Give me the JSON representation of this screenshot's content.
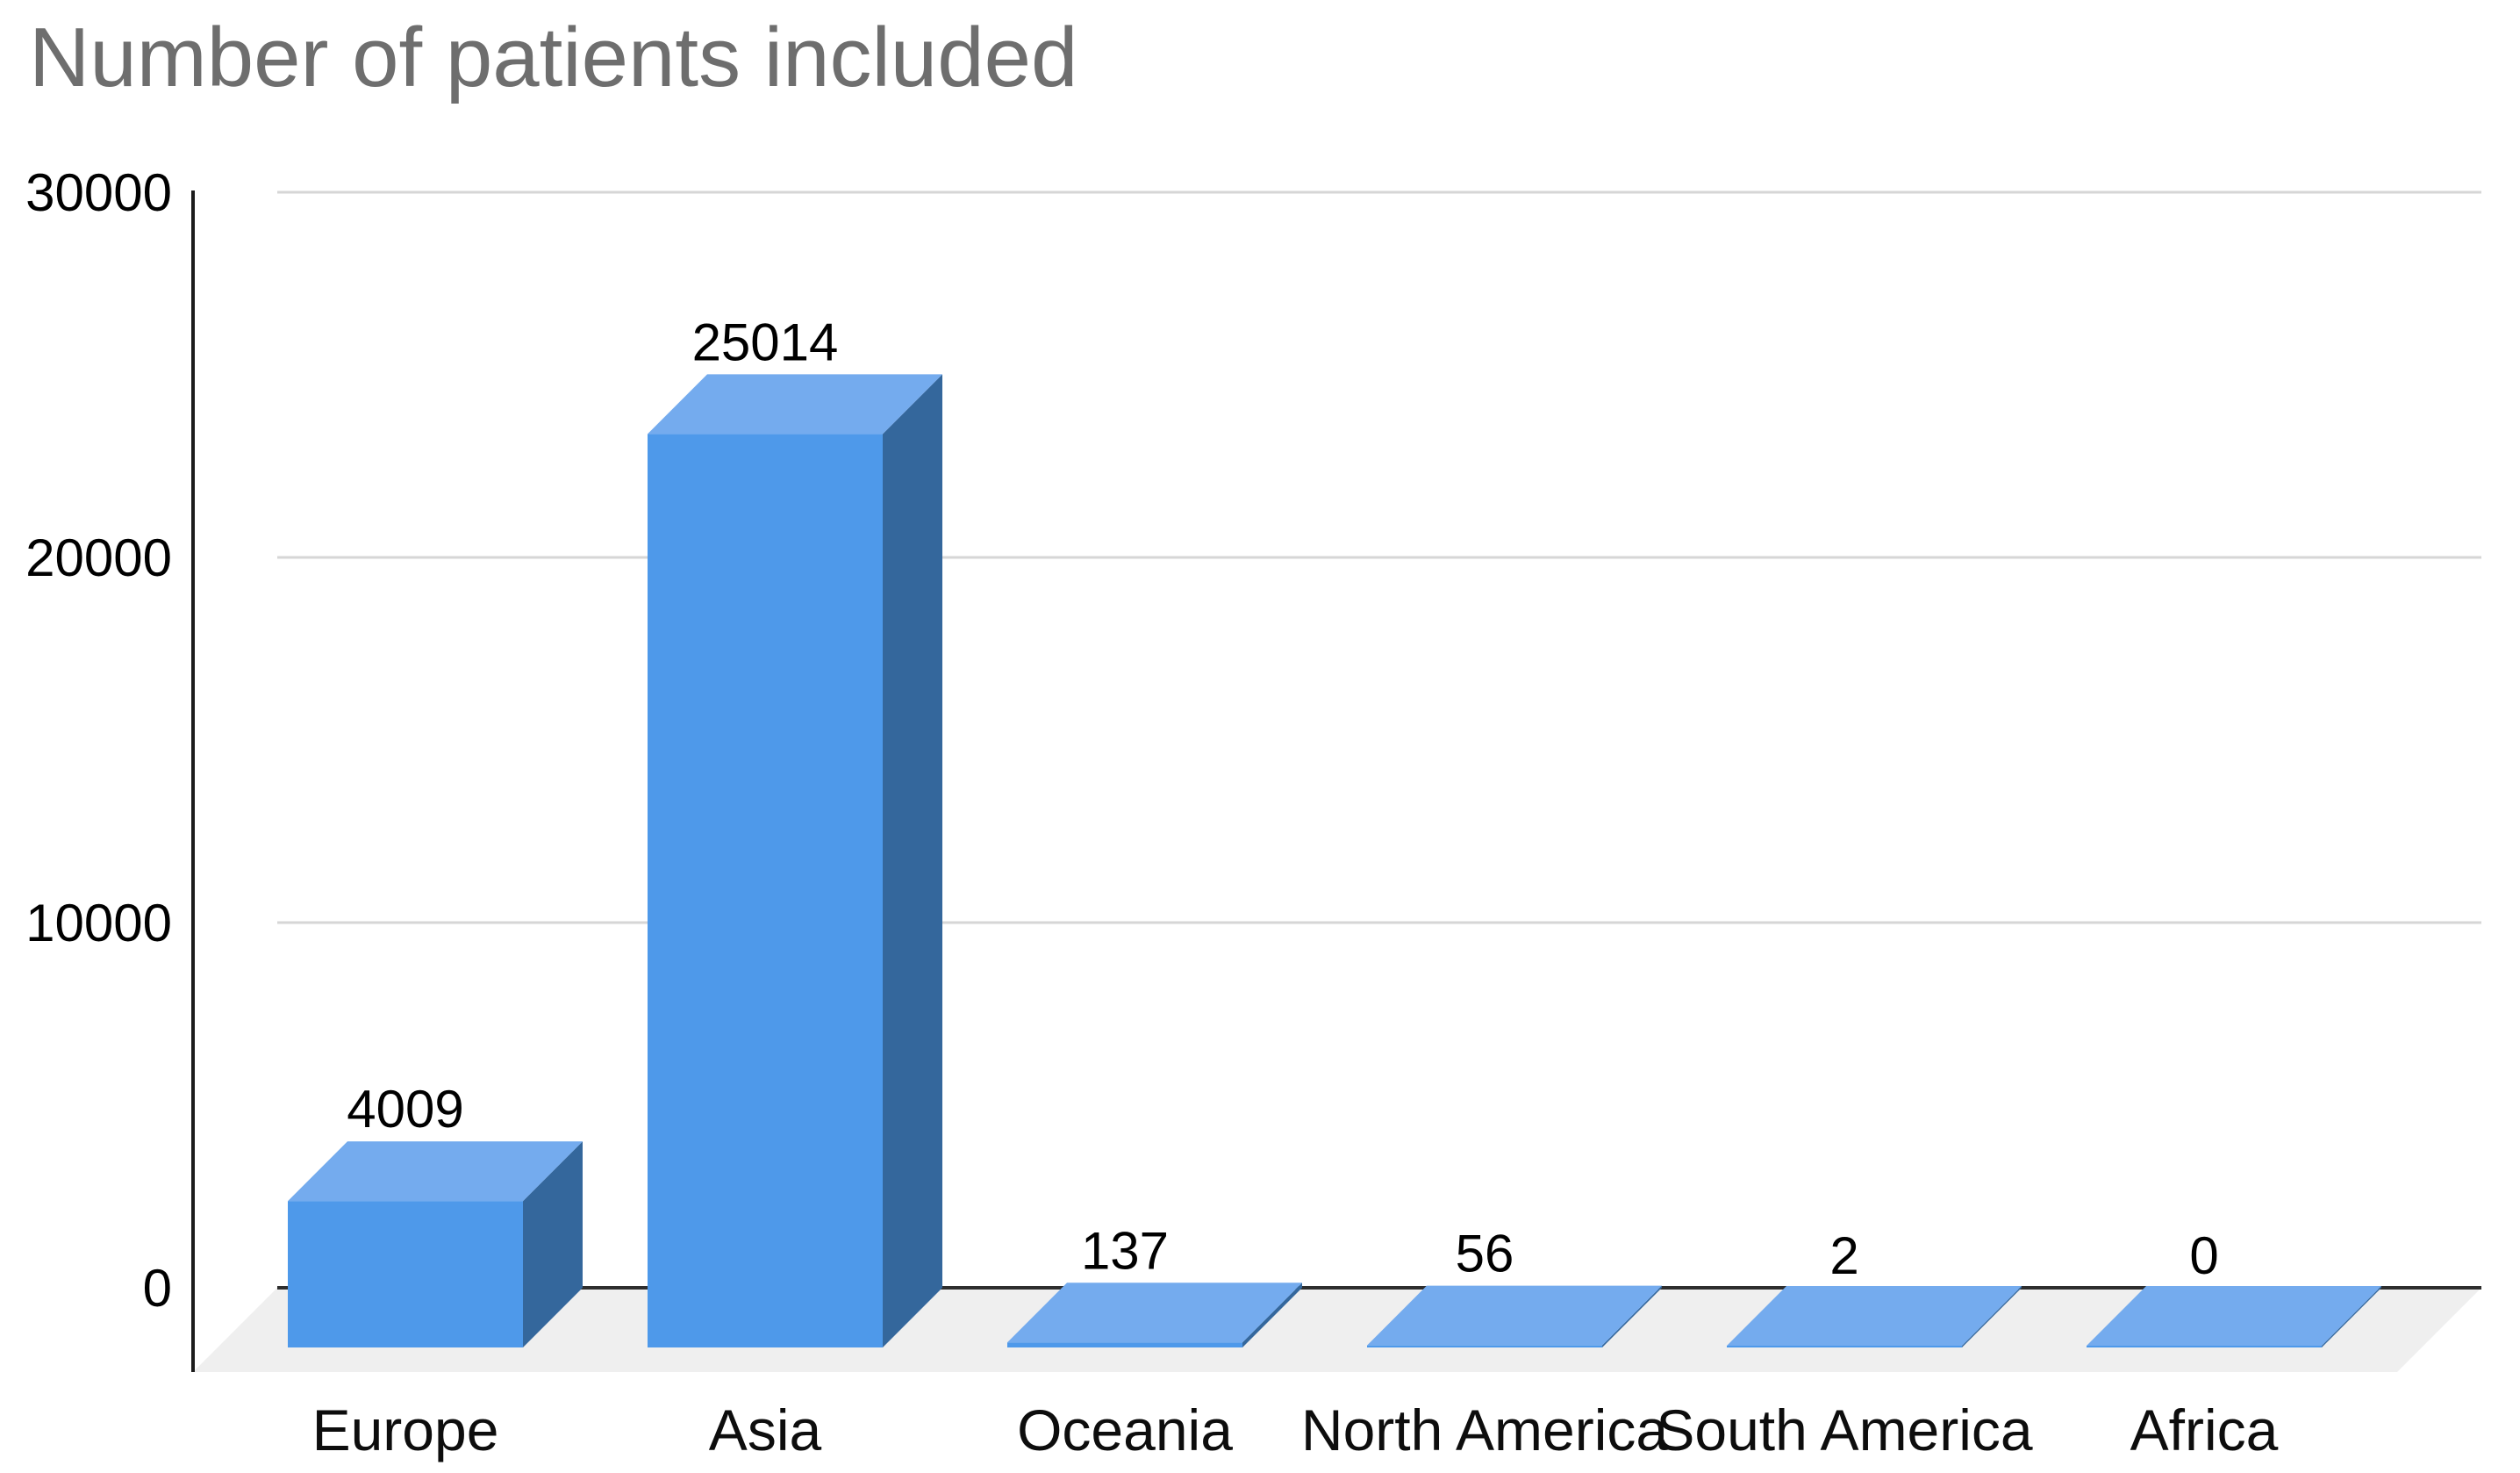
{
  "chart_data": {
    "type": "bar",
    "variant": "3d-column",
    "title": "Number of patients included",
    "categories": [
      "Europe",
      "Asia",
      "Oceania",
      "North America",
      "South America",
      "Africa"
    ],
    "values": [
      4009,
      25014,
      137,
      56,
      2,
      0
    ],
    "value_labels": [
      "4009",
      "25014",
      "137",
      "56",
      "2",
      "0"
    ],
    "xlabel": "",
    "ylabel": "",
    "y_ticks": [
      0,
      10000,
      20000,
      30000
    ],
    "ylim": [
      0,
      30000
    ],
    "grid": true,
    "legend": "none",
    "colors": {
      "bar_front": "#4e99ea",
      "bar_top": "#74abee",
      "bar_side": "#34679c",
      "floor": "#efefef",
      "grid_line": "#d6d6d6",
      "baseline": "#2e2e2e",
      "axis_line": "#1c1c1c",
      "title": "#6e6e6e",
      "label": "#000000",
      "background": "#ffffff"
    }
  }
}
